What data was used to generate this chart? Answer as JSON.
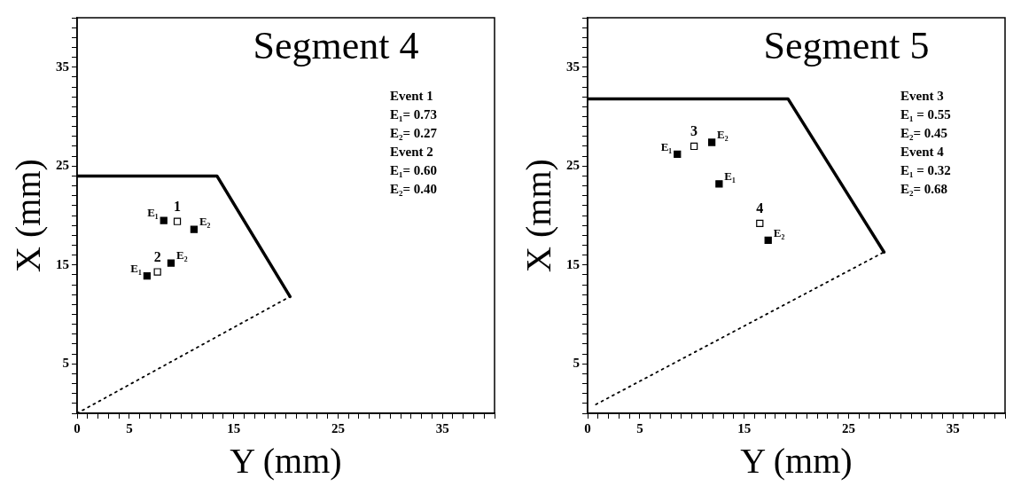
{
  "chart_data": [
    {
      "type": "scatter",
      "title": "Segment 4",
      "xlabel": "Y (mm)",
      "ylabel": "X (mm)",
      "xlim": [
        0,
        40
      ],
      "ylim": [
        0,
        40
      ],
      "legend": false,
      "grid": false,
      "xticks": [
        0,
        {
          "value": 1,
          "label": null
        },
        {
          "value": 2,
          "label": null
        },
        {
          "value": 3,
          "label": null
        },
        {
          "value": 4,
          "label": null
        },
        5,
        {
          "value": 6,
          "label": null
        },
        {
          "value": 7,
          "label": null
        },
        {
          "value": 8,
          "label": null
        },
        {
          "value": 9,
          "label": null
        },
        {
          "value": 10,
          "label": null
        },
        {
          "value": 11,
          "label": null
        },
        {
          "value": 12,
          "label": null
        },
        {
          "value": 13,
          "label": null
        },
        {
          "value": 14,
          "label": null
        },
        15,
        {
          "value": 16,
          "label": null
        },
        {
          "value": 17,
          "label": null
        },
        {
          "value": 18,
          "label": null
        },
        {
          "value": 19,
          "label": null
        },
        {
          "value": 20,
          "label": null
        },
        {
          "value": 21,
          "label": null
        },
        {
          "value": 22,
          "label": null
        },
        {
          "value": 23,
          "label": null
        },
        {
          "value": 24,
          "label": null
        },
        25,
        {
          "value": 26,
          "label": null
        },
        {
          "value": 27,
          "label": null
        },
        {
          "value": 28,
          "label": null
        },
        {
          "value": 29,
          "label": null
        },
        {
          "value": 30,
          "label": null
        },
        {
          "value": 31,
          "label": null
        },
        {
          "value": 32,
          "label": null
        },
        {
          "value": 33,
          "label": null
        },
        {
          "value": 34,
          "label": null
        },
        35,
        {
          "value": 36,
          "label": null
        },
        {
          "value": 37,
          "label": null
        },
        {
          "value": 38,
          "label": null
        },
        {
          "value": 39,
          "label": null
        },
        {
          "value": 40,
          "label": null
        }
      ],
      "yticks": [
        {
          "value": 0,
          "label": null
        },
        {
          "value": 1,
          "label": null
        },
        {
          "value": 2,
          "label": null
        },
        {
          "value": 3,
          "label": null
        },
        {
          "value": 4,
          "label": null
        },
        5,
        {
          "value": 6,
          "label": null
        },
        {
          "value": 7,
          "label": null
        },
        {
          "value": 8,
          "label": null
        },
        {
          "value": 9,
          "label": null
        },
        {
          "value": 10,
          "label": null
        },
        {
          "value": 11,
          "label": null
        },
        {
          "value": 12,
          "label": null
        },
        {
          "value": 13,
          "label": null
        },
        {
          "value": 14,
          "label": null
        },
        15,
        {
          "value": 16,
          "label": null
        },
        {
          "value": 17,
          "label": null
        },
        {
          "value": 18,
          "label": null
        },
        {
          "value": 19,
          "label": null
        },
        {
          "value": 20,
          "label": null
        },
        {
          "value": 21,
          "label": null
        },
        {
          "value": 22,
          "label": null
        },
        {
          "value": 23,
          "label": null
        },
        {
          "value": 24,
          "label": null
        },
        25,
        {
          "value": 26,
          "label": null
        },
        {
          "value": 27,
          "label": null
        },
        {
          "value": 28,
          "label": null
        },
        {
          "value": 29,
          "label": null
        },
        {
          "value": 30,
          "label": null
        },
        {
          "value": 31,
          "label": null
        },
        {
          "value": 32,
          "label": null
        },
        {
          "value": 33,
          "label": null
        },
        {
          "value": 34,
          "label": null
        },
        35,
        {
          "value": 36,
          "label": null
        },
        {
          "value": 37,
          "label": null
        },
        {
          "value": 38,
          "label": null
        },
        {
          "value": 39,
          "label": null
        },
        {
          "value": 40,
          "label": null
        }
      ],
      "series": [
        {
          "type": "scatter",
          "marker": "square",
          "color": "#000000",
          "x": [
            8.3,
            11.2,
            6.7,
            9.0
          ],
          "values": [
            19.5,
            18.6,
            13.9,
            15.2
          ],
          "value_labels": [
            "E₁",
            "E₂",
            "E₁",
            "E₂"
          ]
        },
        {
          "type": "scatter",
          "marker": "square",
          "color": "#ffffff",
          "x": [
            9.6,
            7.7
          ],
          "values": [
            19.4,
            14.3
          ]
        },
        {
          "type": "line",
          "line_style": "solid",
          "color": "#000000",
          "x": [
            0,
            13.4,
            20.4
          ],
          "values": [
            24.0,
            24.0,
            11.8
          ]
        },
        {
          "type": "line",
          "line_style": "dotted",
          "color": "#000000",
          "x": [
            0,
            20.4
          ],
          "values": [
            0,
            11.8
          ]
        }
      ],
      "annotations": [
        "Event 1",
        "E₁= 0.73",
        "E₂= 0.27",
        "Event 2",
        "E₁= 0.60",
        "E₂= 0.40",
        {
          "text": "1",
          "x": 9.6,
          "y": 19.4
        },
        {
          "text": "2",
          "x": 7.7,
          "y": 14.3
        }
      ]
    },
    {
      "type": "scatter",
      "title": "Segment 5",
      "xlabel": "Y (mm)",
      "ylabel": "X (mm)",
      "xlim": [
        0,
        40
      ],
      "ylim": [
        0,
        40
      ],
      "legend": false,
      "grid": false,
      "xticks": [
        0,
        {
          "value": 1,
          "label": null
        },
        {
          "value": 2,
          "label": null
        },
        {
          "value": 3,
          "label": null
        },
        {
          "value": 4,
          "label": null
        },
        5,
        {
          "value": 6,
          "label": null
        },
        {
          "value": 7,
          "label": null
        },
        {
          "value": 8,
          "label": null
        },
        {
          "value": 9,
          "label": null
        },
        {
          "value": 10,
          "label": null
        },
        {
          "value": 11,
          "label": null
        },
        {
          "value": 12,
          "label": null
        },
        {
          "value": 13,
          "label": null
        },
        {
          "value": 14,
          "label": null
        },
        15,
        {
          "value": 16,
          "label": null
        },
        {
          "value": 17,
          "label": null
        },
        {
          "value": 18,
          "label": null
        },
        {
          "value": 19,
          "label": null
        },
        {
          "value": 20,
          "label": null
        },
        {
          "value": 21,
          "label": null
        },
        {
          "value": 22,
          "label": null
        },
        {
          "value": 23,
          "label": null
        },
        {
          "value": 24,
          "label": null
        },
        25,
        {
          "value": 26,
          "label": null
        },
        {
          "value": 27,
          "label": null
        },
        {
          "value": 28,
          "label": null
        },
        {
          "value": 29,
          "label": null
        },
        {
          "value": 30,
          "label": null
        },
        {
          "value": 31,
          "label": null
        },
        {
          "value": 32,
          "label": null
        },
        {
          "value": 33,
          "label": null
        },
        {
          "value": 34,
          "label": null
        },
        35,
        {
          "value": 36,
          "label": null
        },
        {
          "value": 37,
          "label": null
        },
        {
          "value": 38,
          "label": null
        },
        {
          "value": 39,
          "label": null
        },
        {
          "value": 40,
          "label": null
        }
      ],
      "yticks": [
        {
          "value": 0,
          "label": null
        },
        {
          "value": 1,
          "label": null
        },
        {
          "value": 2,
          "label": null
        },
        {
          "value": 3,
          "label": null
        },
        {
          "value": 4,
          "label": null
        },
        5,
        {
          "value": 6,
          "label": null
        },
        {
          "value": 7,
          "label": null
        },
        {
          "value": 8,
          "label": null
        },
        {
          "value": 9,
          "label": null
        },
        {
          "value": 10,
          "label": null
        },
        {
          "value": 11,
          "label": null
        },
        {
          "value": 12,
          "label": null
        },
        {
          "value": 13,
          "label": null
        },
        {
          "value": 14,
          "label": null
        },
        15,
        {
          "value": 16,
          "label": null
        },
        {
          "value": 17,
          "label": null
        },
        {
          "value": 18,
          "label": null
        },
        {
          "value": 19,
          "label": null
        },
        {
          "value": 20,
          "label": null
        },
        {
          "value": 21,
          "label": null
        },
        {
          "value": 22,
          "label": null
        },
        {
          "value": 23,
          "label": null
        },
        {
          "value": 24,
          "label": null
        },
        25,
        {
          "value": 26,
          "label": null
        },
        {
          "value": 27,
          "label": null
        },
        {
          "value": 28,
          "label": null
        },
        {
          "value": 29,
          "label": null
        },
        {
          "value": 30,
          "label": null
        },
        {
          "value": 31,
          "label": null
        },
        {
          "value": 32,
          "label": null
        },
        {
          "value": 33,
          "label": null
        },
        {
          "value": 34,
          "label": null
        },
        35,
        {
          "value": 36,
          "label": null
        },
        {
          "value": 37,
          "label": null
        },
        {
          "value": 38,
          "label": null
        },
        {
          "value": 39,
          "label": null
        },
        {
          "value": 40,
          "label": null
        }
      ],
      "series": [
        {
          "type": "scatter",
          "marker": "square",
          "color": "#000000",
          "x": [
            8.6,
            11.9,
            12.6,
            17.3
          ],
          "values": [
            26.2,
            27.4,
            23.2,
            17.5
          ],
          "value_labels": [
            "E₁",
            "E₂",
            "E₁",
            "E₂"
          ]
        },
        {
          "type": "scatter",
          "marker": "square",
          "color": "#ffffff",
          "x": [
            10.2,
            16.5
          ],
          "values": [
            27.0,
            19.2
          ]
        },
        {
          "type": "line",
          "line_style": "solid",
          "color": "#000000",
          "x": [
            0,
            19.2,
            28.4
          ],
          "values": [
            31.8,
            31.8,
            16.3
          ]
        },
        {
          "type": "line",
          "line_style": "dotted",
          "color": "#000000",
          "x": [
            0.8,
            28.4
          ],
          "values": [
            0.9,
            16.3
          ]
        }
      ],
      "annotations": [
        "Event 3",
        "E₁ = 0.55",
        "E₂= 0.45",
        "Event 4",
        "E₁ = 0.32",
        "E₂= 0.68",
        {
          "text": "3",
          "x": 10.2,
          "y": 27.0
        },
        {
          "text": "4",
          "x": 16.5,
          "y": 19.2
        }
      ]
    }
  ]
}
